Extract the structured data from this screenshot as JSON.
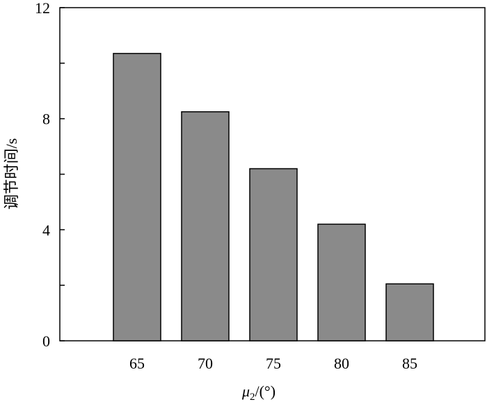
{
  "chart_data": {
    "type": "bar",
    "categories": [
      "65",
      "70",
      "75",
      "80",
      "85"
    ],
    "values": [
      10.35,
      8.25,
      6.2,
      4.2,
      2.05
    ],
    "xlabel": {
      "base": "μ",
      "sub": "2",
      "suffix": "/(°)"
    },
    "ylabel": "调节时间/s",
    "ylim": [
      0,
      12
    ],
    "yticks": [
      "0",
      "4",
      "8",
      "12"
    ],
    "ytick_values": [
      0,
      4,
      8,
      12
    ],
    "yminor_values": [
      2,
      6,
      10
    ],
    "grid": false,
    "colors": {
      "bar": "#8a8a8a",
      "edge": "#000000"
    }
  }
}
